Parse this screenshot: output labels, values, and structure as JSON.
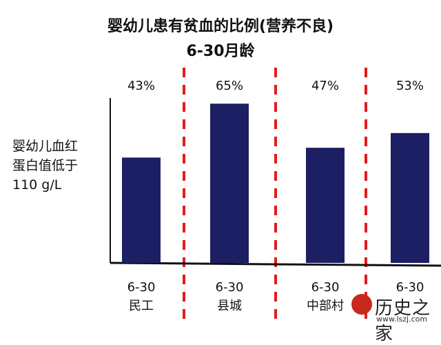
{
  "title": "婴幼儿患有贫血的比例(营养不良)",
  "subtitle": "6-30月龄",
  "ylabel_lines": [
    "婴幼儿血红",
    "蛋白值低于",
    "110 g/L"
  ],
  "chart_data": {
    "type": "bar",
    "title": "婴幼儿患有贫血的比例(营养不良)",
    "subtitle": "6-30月龄",
    "ylabel": "婴幼儿血红蛋白值低于110 g/L",
    "categories": [
      {
        "age": "6-30",
        "group": "民工"
      },
      {
        "age": "6-30",
        "group": "县城"
      },
      {
        "age": "6-30",
        "group": "中部村"
      },
      {
        "age": "6-30",
        "group": ""
      }
    ],
    "values": [
      43,
      65,
      47,
      53
    ],
    "value_labels": [
      "43%",
      "65%",
      "47%",
      "53%"
    ],
    "unit": "%",
    "ylim": [
      0,
      80
    ],
    "bar_color": "#1c1f63",
    "separator_color": "#e31b1b",
    "grid": false,
    "legend": "none"
  },
  "watermark": {
    "text": "历史之家",
    "url": "www.lszj.com"
  }
}
